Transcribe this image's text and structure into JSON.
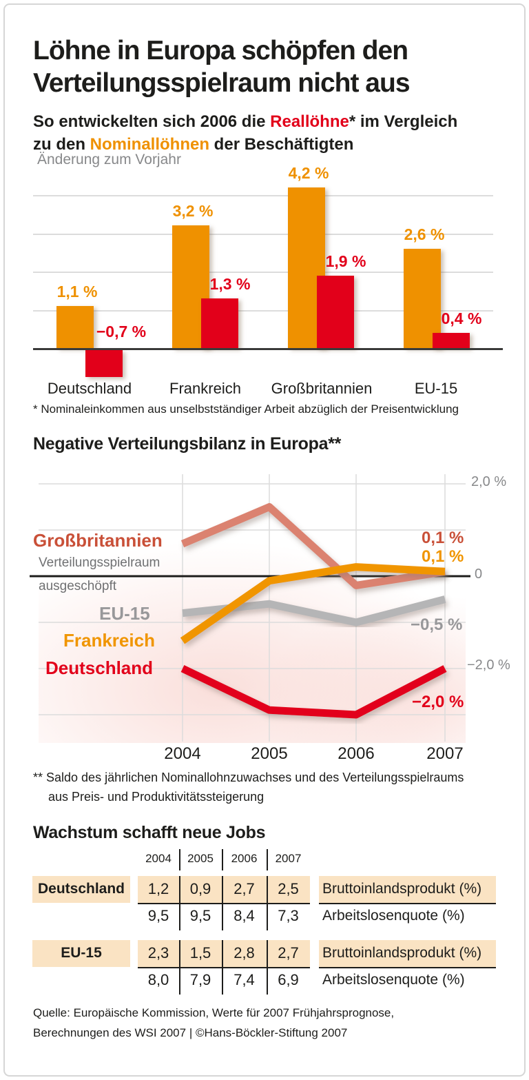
{
  "header": {
    "title_line1": "Löhne in Europa schöpfen den",
    "title_line2": "Verteilungsspielraum nicht aus",
    "subtitle": {
      "part1": "So entwickelten sich 2006 die ",
      "reallohne": "Reallöhne",
      "asterisk": "*",
      "part2": " im Vergleich",
      "part3": "zu den ",
      "nominallohne": "Nominallöhnen",
      "part4": " der Beschäftigten"
    }
  },
  "bar_section": {
    "axis_note": "Änderung zum Vorjahr",
    "footnote": "* Nominaleinkommen aus unselbstständiger Arbeit abzüglich der Preisentwicklung"
  },
  "line_section": {
    "title": "Negative Verteilungsbilanz in Europa**",
    "zero_line_label_1": "Verteilungsspielraum",
    "zero_line_label_2": "ausgeschöpft",
    "footnote_line1": "** Saldo des jährlichen Nominallohnzuwachses und des Verteilungsspielraums",
    "footnote_line2": "aus Preis- und Produktivitätssteigerung"
  },
  "table_section": {
    "title": "Wachstum schafft neue Jobs"
  },
  "source": {
    "line1": "Quelle: Europäische Kommission, Werte für 2007 Frühjahrsprognose,",
    "line2": "Berechnungen des WSI 2007 | ©Hans-Böckler-Stiftung 2007"
  },
  "colors": {
    "orange": "#ef9100",
    "red": "#e2001a",
    "salmon": "#db8270",
    "gray_line": "#b5b5b6",
    "gray_text": "#87888a",
    "peach": "#fae3c3",
    "ink": "#1d1d1b"
  },
  "chart_data": [
    {
      "type": "bar",
      "title": "So entwickelten sich 2006 die Reallöhne* im Vergleich zu den Nominallöhnen der Beschäftigten",
      "ylabel": "Änderung zum Vorjahr (%)",
      "categories": [
        "Deutschland",
        "Frankreich",
        "Großbritannien",
        "EU-15"
      ],
      "series": [
        {
          "name": "Nominallöhne",
          "color": "#ef9100",
          "values": [
            1.1,
            3.2,
            4.2,
            2.6
          ],
          "labels": [
            "1,1 %",
            "3,2 %",
            "4,2 %",
            "2,6 %"
          ]
        },
        {
          "name": "Reallöhne",
          "color": "#e2001a",
          "values": [
            -0.7,
            1.3,
            1.9,
            0.4
          ],
          "labels": [
            "−0,7 %",
            "1,3 %",
            "1,9 %",
            "0,4 %"
          ]
        }
      ],
      "ylim": [
        -1,
        4.5
      ],
      "grid": "horizontal"
    },
    {
      "type": "line",
      "title": "Negative Verteilungsbilanz in Europa**",
      "x": [
        "2004",
        "2005",
        "2006",
        "2007"
      ],
      "series": [
        {
          "name": "Großbritannien",
          "color": "#db8270",
          "values": [
            0.7,
            1.5,
            -0.2,
            0.1
          ],
          "end_label": "0,1 %"
        },
        {
          "name": "Frankreich",
          "color": "#f09500",
          "values": [
            -1.4,
            -0.1,
            0.2,
            0.1
          ],
          "end_label": "0,1 %"
        },
        {
          "name": "EU-15",
          "color": "#b5b5b6",
          "values": [
            -0.8,
            -0.6,
            -1.0,
            -0.5
          ],
          "end_label": "−0,5 %"
        },
        {
          "name": "Deutschland",
          "color": "#e2001a",
          "values": [
            -2.0,
            -2.9,
            -3.0,
            -2.0
          ],
          "end_label": "−2,0 %"
        }
      ],
      "yticks": [
        {
          "value": 2.0,
          "label": "2,0 %"
        },
        {
          "value": 0,
          "label": "0"
        },
        {
          "value": -2.0,
          "label": "−2,0 %"
        }
      ],
      "ylim": [
        -3.3,
        2.2
      ],
      "annotation": "Verteilungsspielraum ausgeschöpft (Nulllinie)",
      "legend_position": "inline-left"
    },
    {
      "type": "table",
      "title": "Wachstum schafft neue Jobs",
      "years": [
        "2004",
        "2005",
        "2006",
        "2007"
      ],
      "rows": [
        {
          "label": "Deutschland",
          "values": [
            "1,2",
            "0,9",
            "2,7",
            "2,5"
          ],
          "metric": "Bruttoinlandsprodukt (%)",
          "highlight": true
        },
        {
          "label": "",
          "values": [
            "9,5",
            "9,5",
            "8,4",
            "7,3"
          ],
          "metric": "Arbeitslosenquote (%)",
          "highlight": false
        },
        {
          "label": "EU-15",
          "values": [
            "2,3",
            "1,5",
            "2,8",
            "2,7"
          ],
          "metric": "Bruttoinlandsprodukt (%)",
          "highlight": true
        },
        {
          "label": "",
          "values": [
            "8,0",
            "7,9",
            "7,4",
            "6,9"
          ],
          "metric": "Arbeitslosenquote (%)",
          "highlight": false
        }
      ]
    }
  ]
}
